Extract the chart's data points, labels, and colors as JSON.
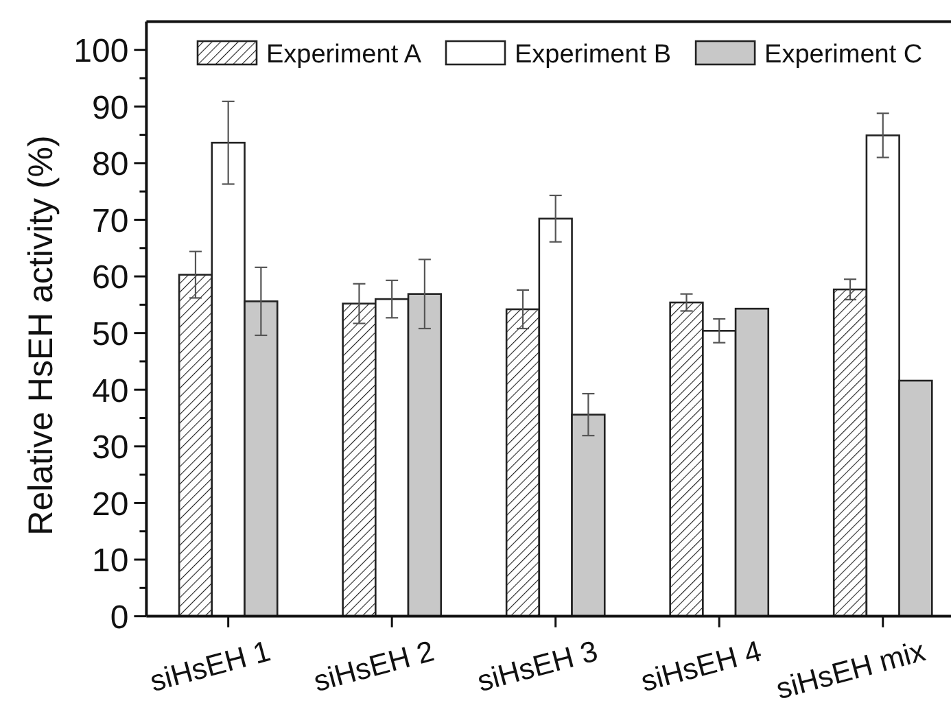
{
  "chart_data": {
    "type": "bar",
    "ylabel": "Relative HsEH activity (%)",
    "categories": [
      "siHsEH 1",
      "siHsEH 2",
      "siHsEH 3",
      "siHsEH 4",
      "siHsEH mix"
    ],
    "series": [
      {
        "name": "Experiment A",
        "color": "#222222",
        "values": [
          60.3,
          55.2,
          54.2,
          55.4,
          57.7
        ],
        "errors": [
          4.1,
          3.5,
          3.4,
          1.5,
          1.8
        ]
      },
      {
        "name": "Experiment B",
        "color": "#ffffff",
        "values": [
          83.6,
          56.0,
          70.2,
          50.4,
          84.9
        ],
        "errors": [
          7.3,
          3.3,
          4.1,
          2.1,
          3.9
        ]
      },
      {
        "name": "Experiment C",
        "color": "#c8c8c8",
        "values": [
          55.6,
          56.9,
          35.6,
          54.3,
          41.6
        ],
        "errors": [
          6.0,
          6.1,
          3.7,
          null,
          null
        ]
      }
    ],
    "ylim": [
      0,
      105
    ],
    "yticks": [
      0,
      {
        "value": 5,
        "label": null
      },
      10,
      {
        "value": 15,
        "label": null
      },
      20,
      {
        "value": 25,
        "label": null
      },
      30,
      {
        "value": 35,
        "label": null
      },
      40,
      {
        "value": 45,
        "label": null
      },
      50,
      {
        "value": 55,
        "label": null
      },
      60,
      {
        "value": 65,
        "label": null
      },
      70,
      {
        "value": 75,
        "label": null
      },
      80,
      {
        "value": 85,
        "label": null
      },
      90,
      {
        "value": 95,
        "label": null
      },
      100
    ],
    "legend": "top"
  }
}
